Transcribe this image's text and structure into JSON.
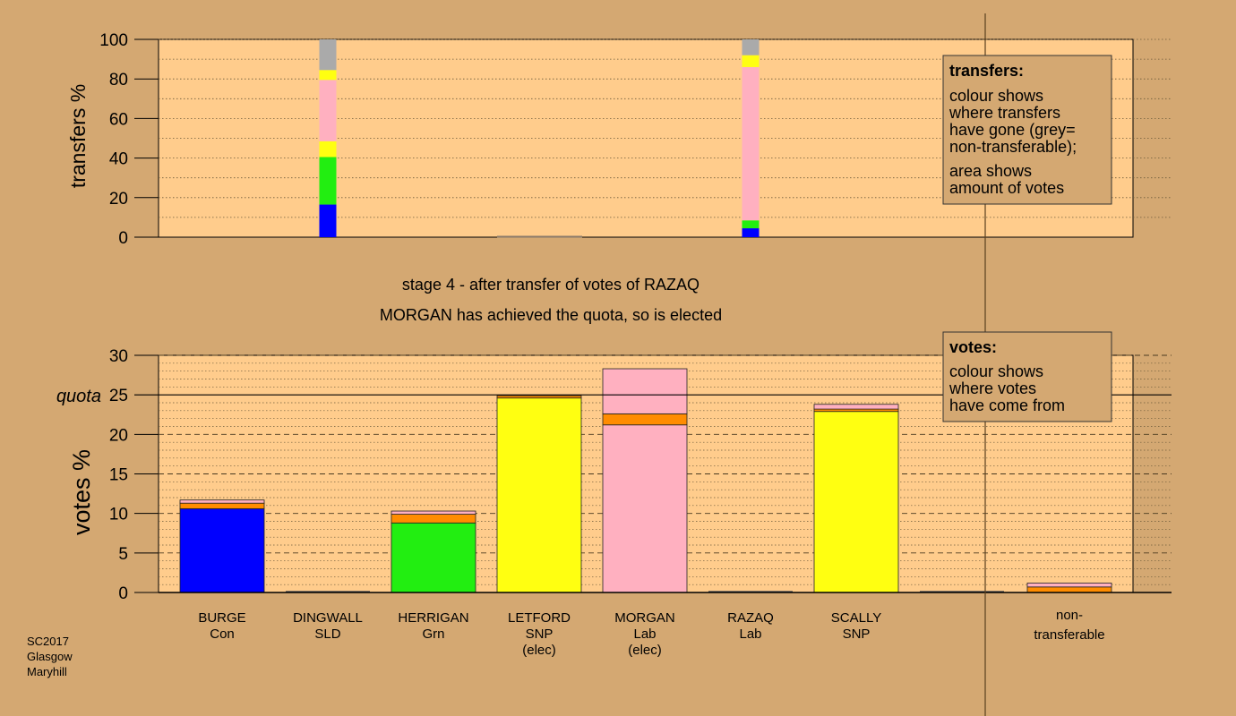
{
  "labels": {
    "stage_line": "stage 4 - after transfer of votes of RAZAQ",
    "elected_line": "MORGAN has achieved the quota, so is elected",
    "footer": [
      "SC2017",
      "Glasgow",
      "Maryhill"
    ],
    "quota_label": "quota"
  },
  "colors": {
    "background": "#d4a872",
    "plot_bg": "#ffcc8c",
    "legend_bg": "#d4a872",
    "Con": "#0000ff",
    "Grn": "#22ee11",
    "SNP": "#ffff11",
    "Lab": "#ffb0c0",
    "other": "#ff8c00",
    "nontransferable": "#aaaaaa"
  },
  "legend": {
    "transfers": {
      "title": "transfers:",
      "lines": [
        "colour shows",
        "where transfers",
        "have gone (grey=",
        "non-transferable);",
        "area shows",
        "amount of votes"
      ]
    },
    "votes": {
      "title": "votes:",
      "lines": [
        "colour shows",
        "where votes",
        "have come from"
      ]
    }
  },
  "chart_data": [
    {
      "type": "bar",
      "stacked": true,
      "ylabel": "transfers %",
      "ylim": [
        0,
        100
      ],
      "yticks": [
        0,
        20,
        40,
        60,
        80,
        100
      ],
      "grid": "dotted",
      "legend_position": "top-right",
      "bars": [
        {
          "x": 1.5,
          "width": 0.07,
          "segments": [
            {
              "color": "Con",
              "value": 16.5
            },
            {
              "color": "Grn",
              "value": 24
            },
            {
              "color": "SNP",
              "value": 8
            },
            {
              "color": "Lab",
              "value": 31
            },
            {
              "color": "SNP",
              "value": 5
            },
            {
              "color": "nontransferable",
              "value": 15.5
            }
          ]
        },
        {
          "x": 5.5,
          "width": 0.07,
          "segments": [
            {
              "color": "Con",
              "value": 4.5
            },
            {
              "color": "Grn",
              "value": 4
            },
            {
              "color": "Lab",
              "value": 77.5
            },
            {
              "color": "SNP",
              "value": 6
            },
            {
              "color": "nontransferable",
              "value": 8
            }
          ]
        }
      ]
    },
    {
      "type": "bar",
      "stacked": true,
      "ylabel": "votes %",
      "ylim": [
        0,
        30
      ],
      "yticks": [
        0,
        5,
        10,
        15,
        20,
        25,
        30
      ],
      "quota": 25,
      "grid": "dashed",
      "legend_position": "top-right",
      "categories": [
        {
          "name": "BURGE",
          "party": "Con",
          "note": ""
        },
        {
          "name": "DINGWALL",
          "party": "SLD",
          "note": ""
        },
        {
          "name": "HERRIGAN",
          "party": "Grn",
          "note": ""
        },
        {
          "name": "LETFORD",
          "party": "SNP",
          "note": "(elec)"
        },
        {
          "name": "MORGAN",
          "party": "Lab",
          "note": "(elec)"
        },
        {
          "name": "RAZAQ",
          "party": "Lab",
          "note": ""
        },
        {
          "name": "SCALLY",
          "party": "SNP",
          "note": ""
        }
      ],
      "nontransferable_label": [
        "non-",
        "transferable"
      ],
      "stacks": [
        [
          {
            "color": "Con",
            "value": 10.6
          },
          {
            "color": "other",
            "value": 0.7
          },
          {
            "color": "Lab",
            "value": 0.4
          }
        ],
        [],
        [
          {
            "color": "Grn",
            "value": 8.8
          },
          {
            "color": "other",
            "value": 1.1
          },
          {
            "color": "Lab",
            "value": 0.4
          }
        ],
        [
          {
            "color": "SNP",
            "value": 24.6
          },
          {
            "color": "other",
            "value": 0.3
          }
        ],
        [
          {
            "color": "Lab",
            "value": 21.2
          },
          {
            "color": "other",
            "value": 1.4
          },
          {
            "color": "Lab",
            "value": 5.7
          }
        ],
        [],
        [
          {
            "color": "SNP",
            "value": 22.9
          },
          {
            "color": "other",
            "value": 0.3
          },
          {
            "color": "Lab",
            "value": 0.6
          }
        ]
      ],
      "nontransferable": [
        {
          "color": "other",
          "value": 0.7
        },
        {
          "color": "Lab",
          "value": 0.5
        }
      ]
    }
  ]
}
